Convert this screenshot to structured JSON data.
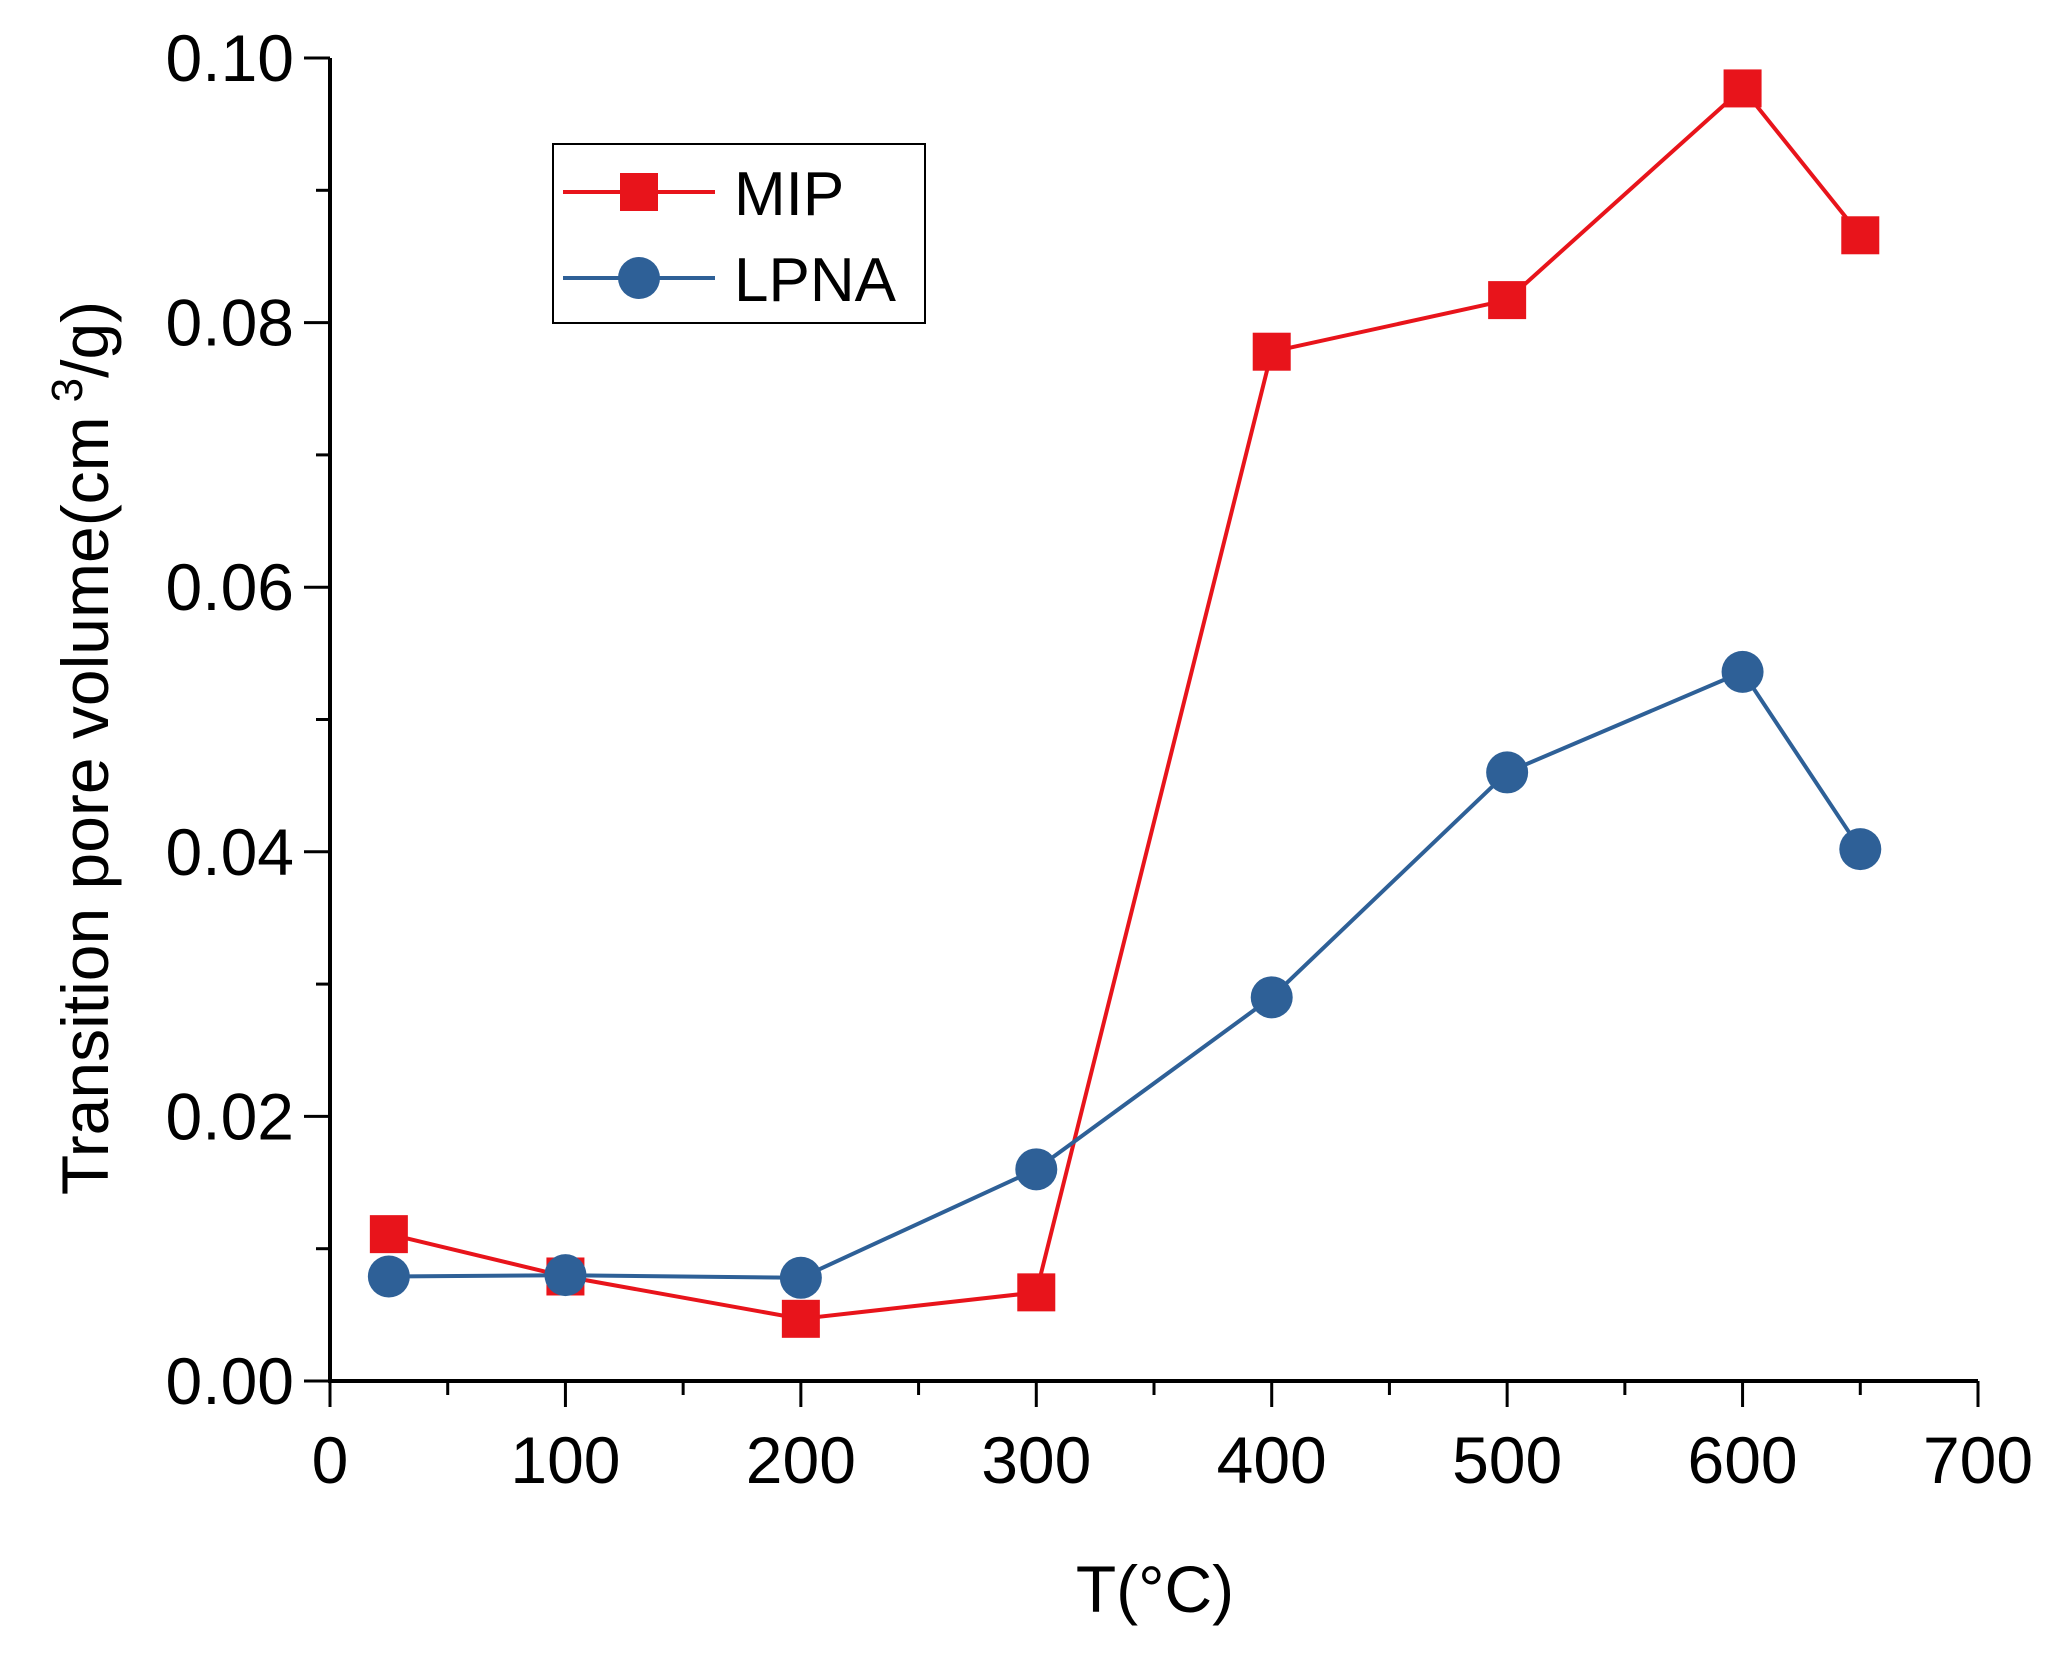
{
  "chart_data": {
    "type": "line",
    "xlabel": "T(°C)",
    "ylabel_main": "Transition pore volume(cm",
    "ylabel_sup": "3",
    "ylabel_tail": "/g)",
    "xlim": [
      0,
      700
    ],
    "ylim": [
      0,
      0.1
    ],
    "xticks": [
      "0",
      "100",
      "200",
      "300",
      "400",
      "500",
      "600",
      "700"
    ],
    "yticks": [
      "0.00",
      "0.02",
      "0.04",
      "0.06",
      "0.08",
      "0.10"
    ],
    "grid": false,
    "legend_position": "top-left",
    "series": [
      {
        "name": "MIP",
        "color": "#e8141b",
        "marker": "square",
        "x": [
          25,
          100,
          200,
          300,
          400,
          500,
          600,
          650
        ],
        "y": [
          0.0111,
          0.0079,
          0.0047,
          0.0067,
          0.0778,
          0.0817,
          0.0977,
          0.0866
        ]
      },
      {
        "name": "LPNA",
        "color": "#2e6097",
        "marker": "circle",
        "x": [
          25,
          100,
          200,
          300,
          400,
          500,
          600,
          650
        ],
        "y": [
          0.0079,
          0.008,
          0.0078,
          0.016,
          0.029,
          0.046,
          0.0536,
          0.0402
        ]
      }
    ]
  }
}
